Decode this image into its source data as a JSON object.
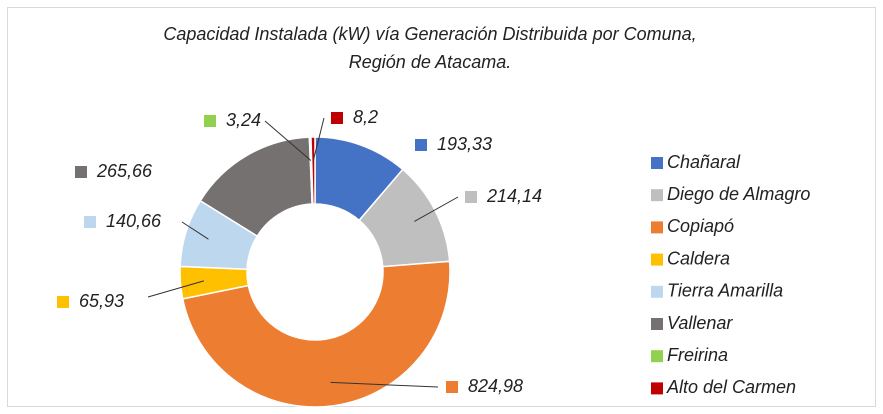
{
  "chart_data": {
    "type": "donut",
    "title": [
      "Capacidad Instalada (kW) vía Generación Distribuida por Comuna,",
      "Región de Atacama."
    ],
    "categories": [
      "Chañaral",
      "Diego de Almagro",
      "Copiapó",
      "Caldera",
      "Tierra Amarilla",
      "Vallenar",
      "Freirina",
      "Alto del Carmen"
    ],
    "values": [
      193.33,
      214.14,
      824.98,
      65.93,
      140.66,
      265.66,
      3.24,
      8.2
    ],
    "value_labels": [
      "193,33",
      "214,14",
      "824,98",
      "65,93",
      "140,66",
      "265,66",
      "3,24",
      "8,2"
    ],
    "colors": [
      "#4472c4",
      "#bfbfbf",
      "#ed7d31",
      "#ffc000",
      "#bdd7ee",
      "#767171",
      "#92d050",
      "#c00000"
    ],
    "legend": "right"
  }
}
